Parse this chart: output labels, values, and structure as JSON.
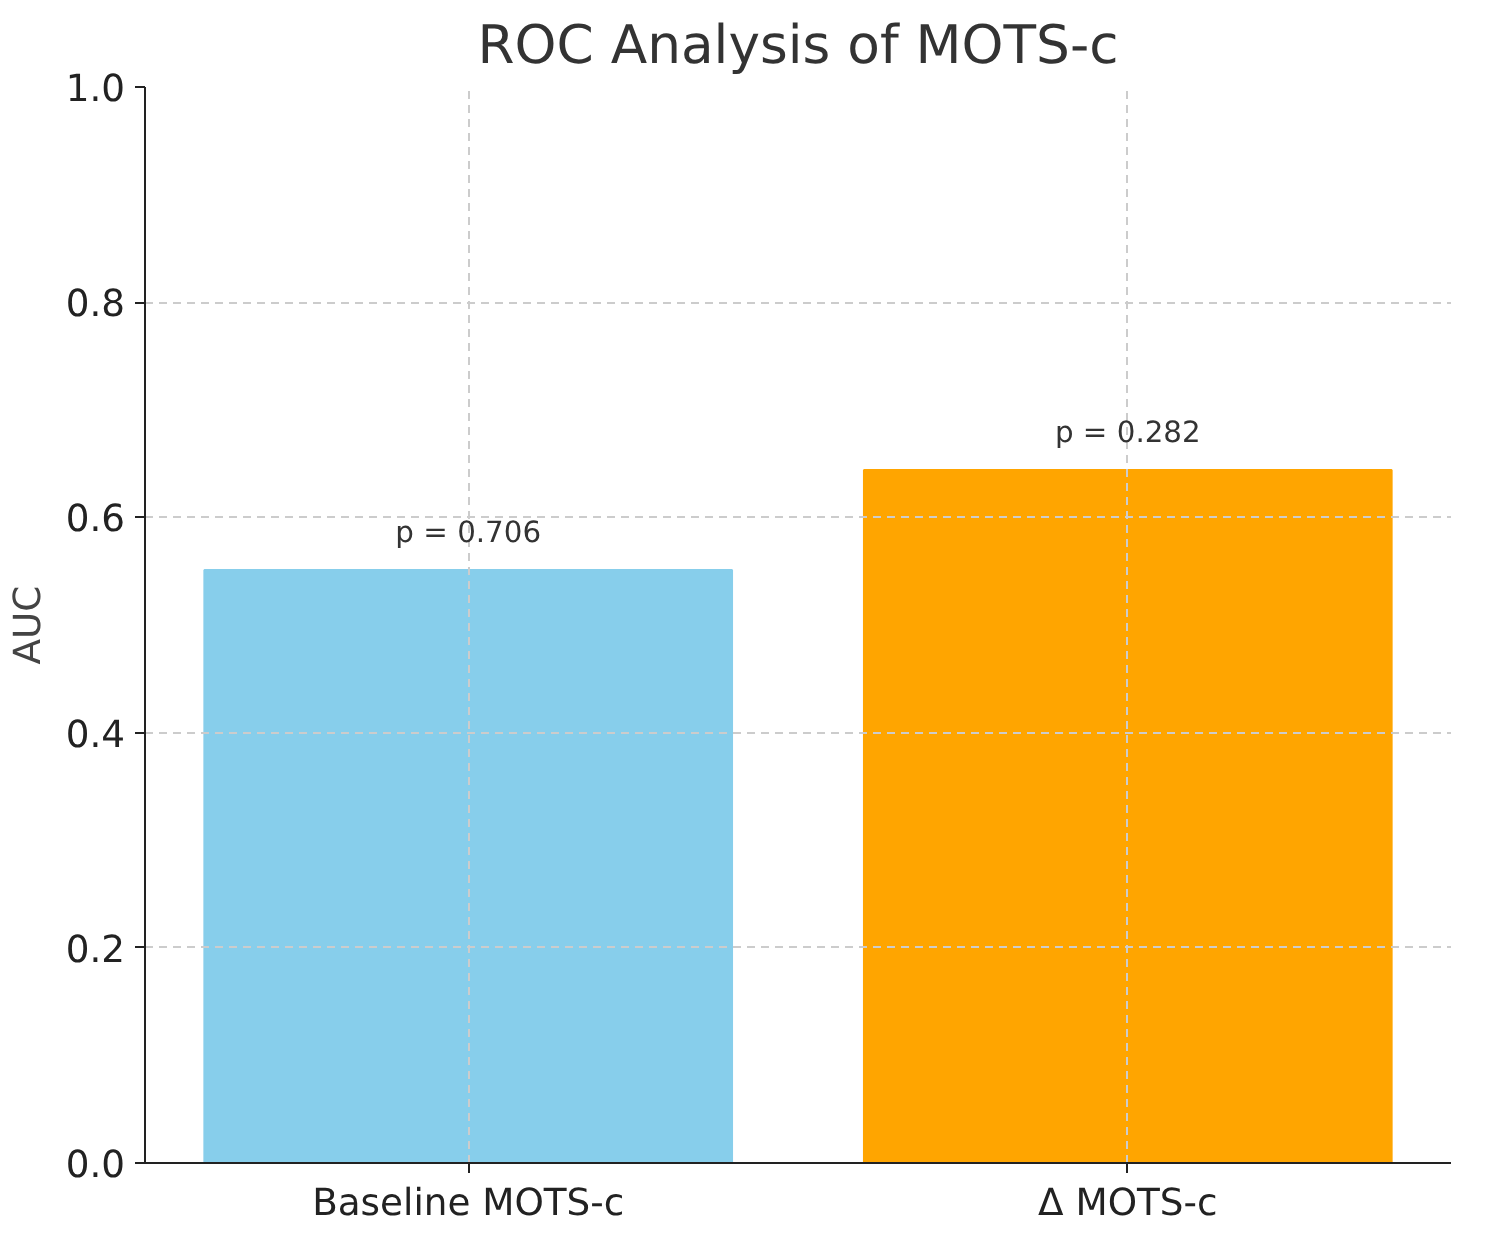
{
  "chart_data": {
    "type": "bar",
    "title": "ROC Analysis of MOTS-c",
    "ylabel": "AUC",
    "categories": [
      "Baseline MOTS-c",
      "Δ MOTS-c"
    ],
    "values": [
      0.551,
      0.644
    ],
    "colors": [
      "#87ceeb",
      "#ffa500"
    ],
    "ylim": [
      0,
      1.0
    ],
    "yticks": [
      {
        "value": 0,
        "label": "0.0"
      },
      {
        "value": 0.2,
        "label": "0.2"
      },
      {
        "value": 0.4,
        "label": "0.4"
      },
      {
        "value": 0.6,
        "label": "0.6"
      },
      {
        "value": 0.8,
        "label": "0.8"
      },
      {
        "value": 1,
        "label": "1.0"
      }
    ],
    "grid": true,
    "annotations": [
      {
        "text": "p = 0.706",
        "x": "Baseline MOTS-c",
        "y": 0.551
      },
      {
        "text": "p = 0.282",
        "x": "Δ MOTS-c",
        "y": 0.644
      }
    ]
  }
}
